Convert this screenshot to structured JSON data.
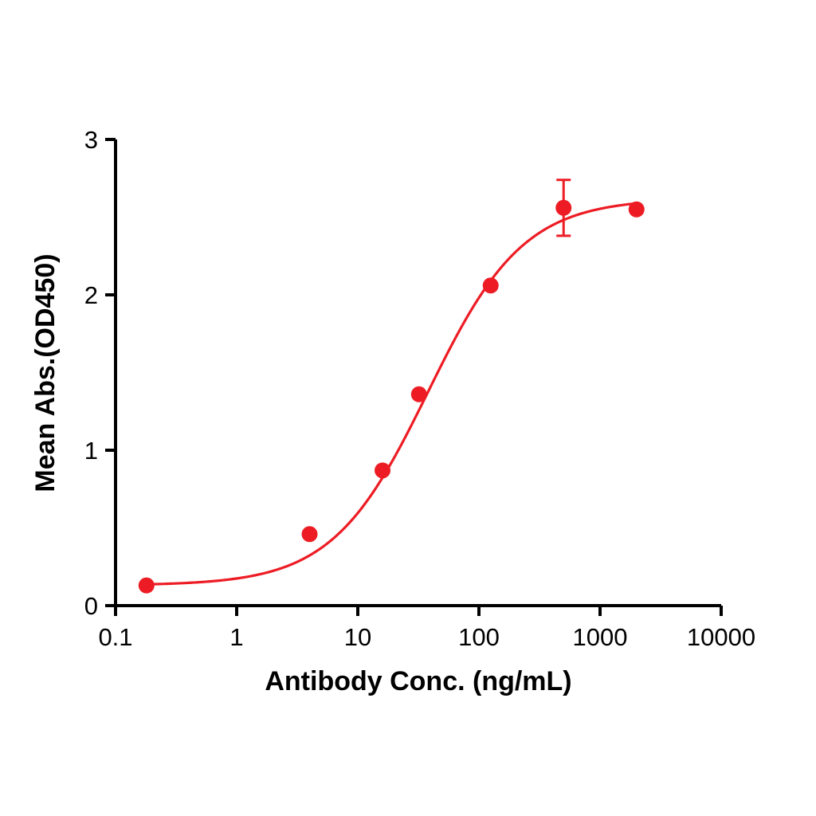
{
  "chart_data": {
    "type": "scatter",
    "title": "",
    "xlabel": "Antibody Conc. (ng/mL)",
    "ylabel": "Mean Abs.(OD450)",
    "x_scale": "log10",
    "xlim": [
      0.1,
      10000
    ],
    "ylim": [
      0,
      3
    ],
    "x_ticks": [
      0.1,
      1,
      10,
      100,
      1000,
      10000
    ],
    "x_tick_labels": [
      "0.1",
      "1",
      "10",
      "100",
      "1000",
      "10000"
    ],
    "y_ticks": [
      0,
      1,
      2,
      3
    ],
    "y_tick_labels": [
      "0",
      "1",
      "2",
      "3"
    ],
    "grid": false,
    "legend": false,
    "series": [
      {
        "name": "Mean Abs.(OD450)",
        "color": "#ED1C24",
        "marker": "circle",
        "points": [
          {
            "x": 0.18,
            "y": 0.13
          },
          {
            "x": 4,
            "y": 0.46
          },
          {
            "x": 16,
            "y": 0.87
          },
          {
            "x": 32,
            "y": 1.36
          },
          {
            "x": 125,
            "y": 2.06
          },
          {
            "x": 500,
            "y": 2.56,
            "error": 0.18
          },
          {
            "x": 2000,
            "y": 2.55
          }
        ],
        "fit": {
          "model": "4PL",
          "bottom": 0.13,
          "top": 2.62,
          "ec50": 38,
          "hill": 1.1,
          "x_start": 0.18,
          "x_end": 2000
        }
      }
    ]
  },
  "styles": {
    "accent_red": "#ED1C24",
    "axis_color": "#000000",
    "background": "#FFFFFF"
  }
}
